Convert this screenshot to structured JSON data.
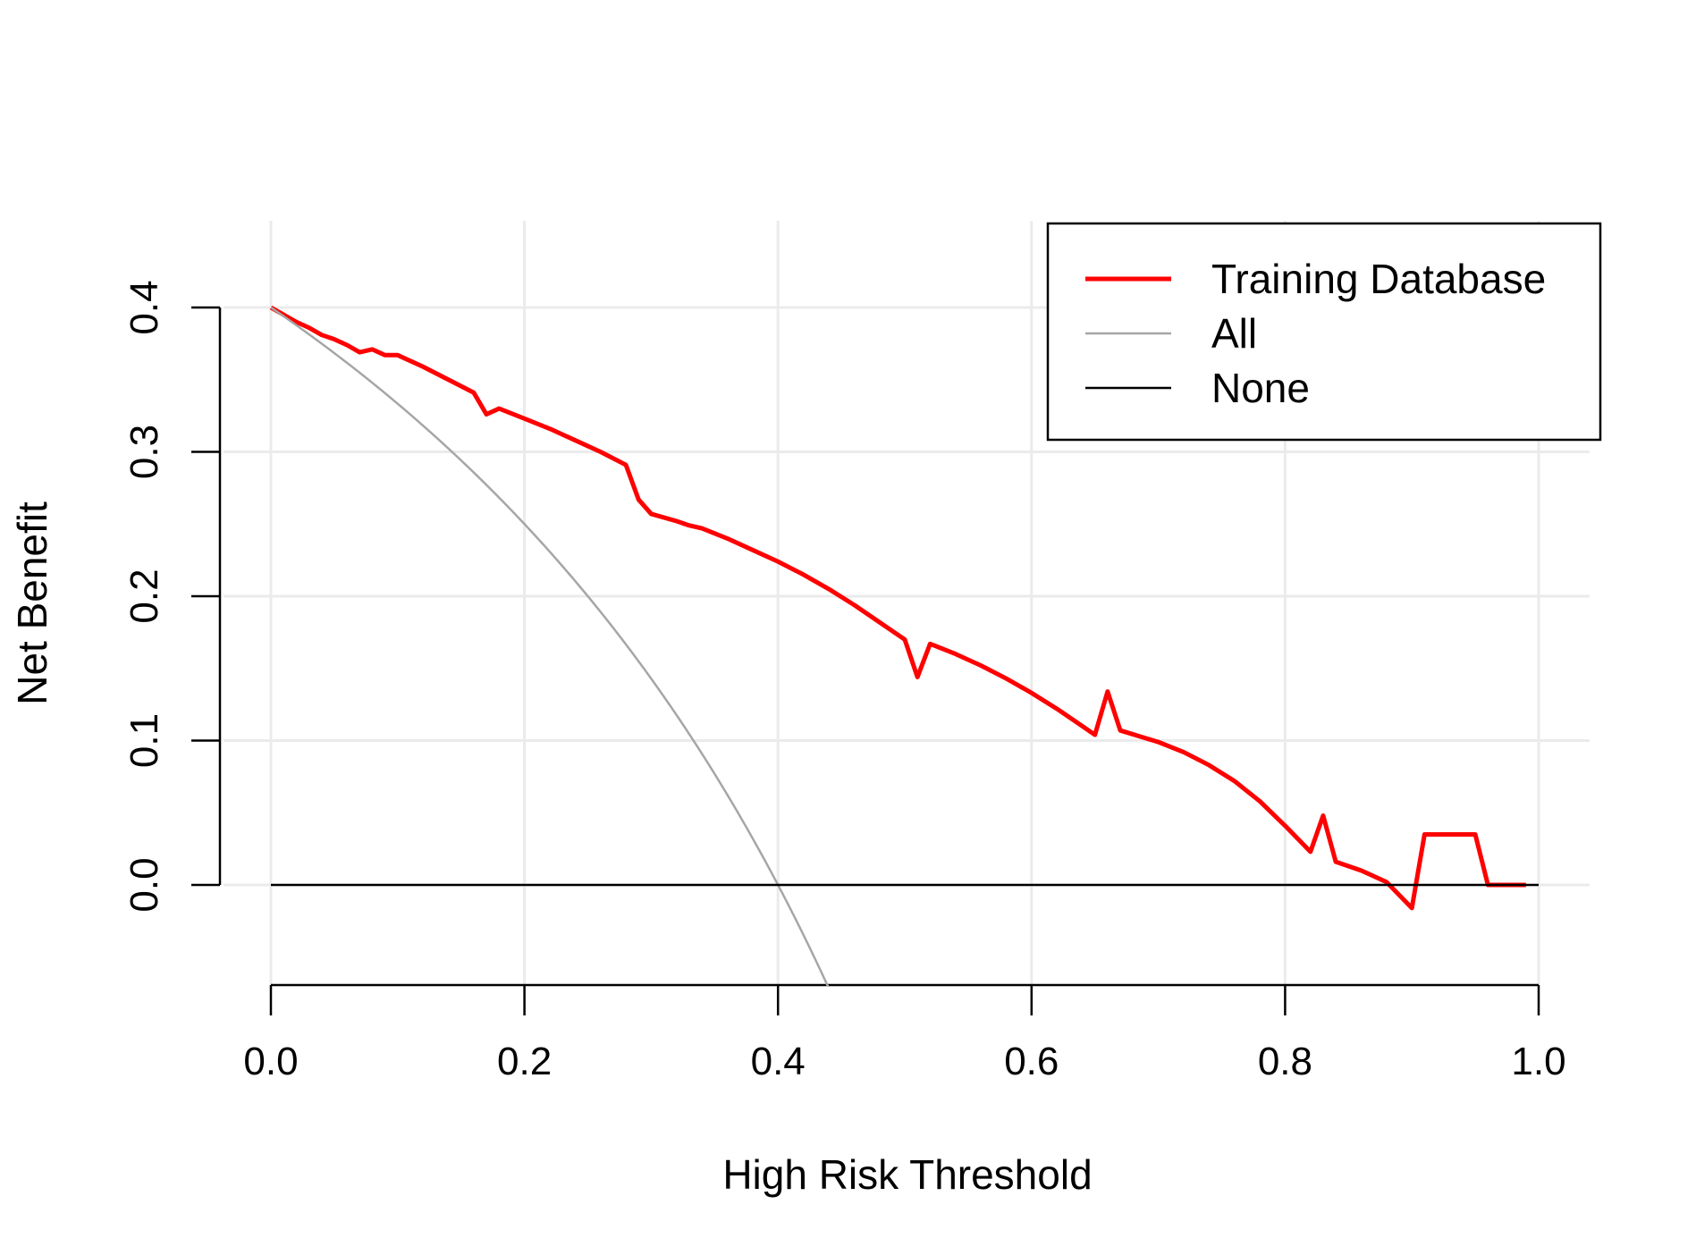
{
  "chart_data": {
    "type": "line",
    "title": "",
    "xlabel": "High Risk Threshold",
    "ylabel": "Net Benefit",
    "xlim": [
      0,
      1
    ],
    "ylim": [
      -0.07,
      0.46
    ],
    "x_ticks": [
      "0.0",
      "0.2",
      "0.4",
      "0.6",
      "0.8",
      "1.0"
    ],
    "y_ticks": [
      "0.0",
      "0.1",
      "0.2",
      "0.3",
      "0.4"
    ],
    "grid": true,
    "legend_position": "top-right",
    "series": [
      {
        "name": "Training Database",
        "color": "#ff0000",
        "x": [
          0.0,
          0.01,
          0.02,
          0.03,
          0.04,
          0.05,
          0.06,
          0.07,
          0.08,
          0.09,
          0.1,
          0.12,
          0.14,
          0.16,
          0.17,
          0.18,
          0.2,
          0.22,
          0.24,
          0.26,
          0.28,
          0.29,
          0.3,
          0.32,
          0.33,
          0.34,
          0.36,
          0.38,
          0.4,
          0.42,
          0.44,
          0.46,
          0.48,
          0.5,
          0.51,
          0.52,
          0.54,
          0.56,
          0.58,
          0.6,
          0.62,
          0.64,
          0.65,
          0.66,
          0.67,
          0.7,
          0.72,
          0.74,
          0.76,
          0.78,
          0.8,
          0.82,
          0.83,
          0.84,
          0.86,
          0.88,
          0.9,
          0.91,
          0.92,
          0.95,
          0.96,
          0.99
        ],
        "values": [
          0.4,
          0.395,
          0.39,
          0.386,
          0.381,
          0.378,
          0.374,
          0.369,
          0.371,
          0.367,
          0.367,
          0.359,
          0.35,
          0.341,
          0.326,
          0.33,
          0.323,
          0.316,
          0.308,
          0.3,
          0.291,
          0.267,
          0.257,
          0.252,
          0.249,
          0.247,
          0.24,
          0.232,
          0.224,
          0.215,
          0.205,
          0.194,
          0.182,
          0.17,
          0.144,
          0.167,
          0.16,
          0.152,
          0.143,
          0.133,
          0.122,
          0.11,
          0.104,
          0.134,
          0.107,
          0.099,
          0.092,
          0.083,
          0.072,
          0.058,
          0.041,
          0.023,
          0.048,
          0.016,
          0.01,
          0.002,
          -0.016,
          0.035,
          0.035,
          0.035,
          0.0,
          0.0
        ]
      },
      {
        "name": "All",
        "color": "#a6a6a6",
        "prevalence": 0.4
      },
      {
        "name": "None",
        "color": "#000000",
        "constant": 0.0
      }
    ]
  }
}
